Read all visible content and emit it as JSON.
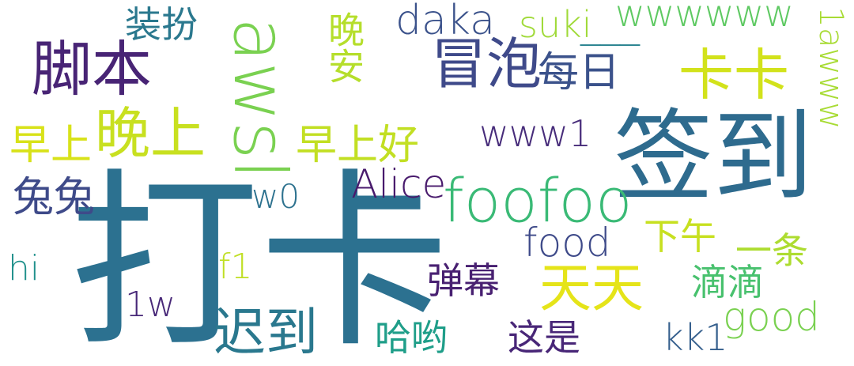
{
  "palette": {
    "dark_purple": "#482878",
    "indigo": "#3e4989",
    "slate_blue": "#31688e",
    "teal": "#26828e",
    "green_teal": "#1f9e89",
    "green": "#35b779",
    "light_green": "#6ece58",
    "lime": "#b5de2b",
    "yellow": "#fde725"
  },
  "words": [
    {
      "id": "daka",
      "text": "打卡"
    },
    {
      "id": "qiandao",
      "text": "签到"
    },
    {
      "id": "awsl",
      "text": "awsl"
    },
    {
      "id": "jiaoben",
      "text": "脚本"
    },
    {
      "id": "maopao",
      "text": "冒泡"
    },
    {
      "id": "kaka",
      "text": "卡卡"
    },
    {
      "id": "meiri",
      "text": "每日"
    },
    {
      "id": "wanshang",
      "text": "晚上"
    },
    {
      "id": "zaoshang",
      "text": "早上"
    },
    {
      "id": "zaoshanghao",
      "text": "早上好"
    },
    {
      "id": "tutu",
      "text": "兔兔"
    },
    {
      "id": "alice",
      "text": "Alice"
    },
    {
      "id": "foofoo",
      "text": "foofoo"
    },
    {
      "id": "www1",
      "text": "www1"
    },
    {
      "id": "awww1",
      "text": "1awww"
    },
    {
      "id": "wwwwww",
      "text": "wwwwww"
    },
    {
      "id": "suki",
      "text": "suki"
    },
    {
      "id": "underscores",
      "text": "___"
    },
    {
      "id": "daka_latin",
      "text": "daka"
    },
    {
      "id": "zhuangban",
      "text": "装扮"
    },
    {
      "id": "wanan",
      "text": "晚安"
    },
    {
      "id": "w0",
      "text": "w0"
    },
    {
      "id": "hi",
      "text": "hi"
    },
    {
      "id": "f1",
      "text": "f1"
    },
    {
      "id": "one_w",
      "text": "1w"
    },
    {
      "id": "chidao",
      "text": "迟到"
    },
    {
      "id": "danmu",
      "text": "弹幕"
    },
    {
      "id": "tiantian",
      "text": "天天"
    },
    {
      "id": "food",
      "text": "food"
    },
    {
      "id": "xiawu",
      "text": "下午"
    },
    {
      "id": "yitiao",
      "text": "一条"
    },
    {
      "id": "didi",
      "text": "滴滴"
    },
    {
      "id": "haoyou",
      "text": "哈哟"
    },
    {
      "id": "zheshi",
      "text": "这是"
    },
    {
      "id": "kk1",
      "text": "kk1"
    },
    {
      "id": "good",
      "text": "good"
    }
  ]
}
